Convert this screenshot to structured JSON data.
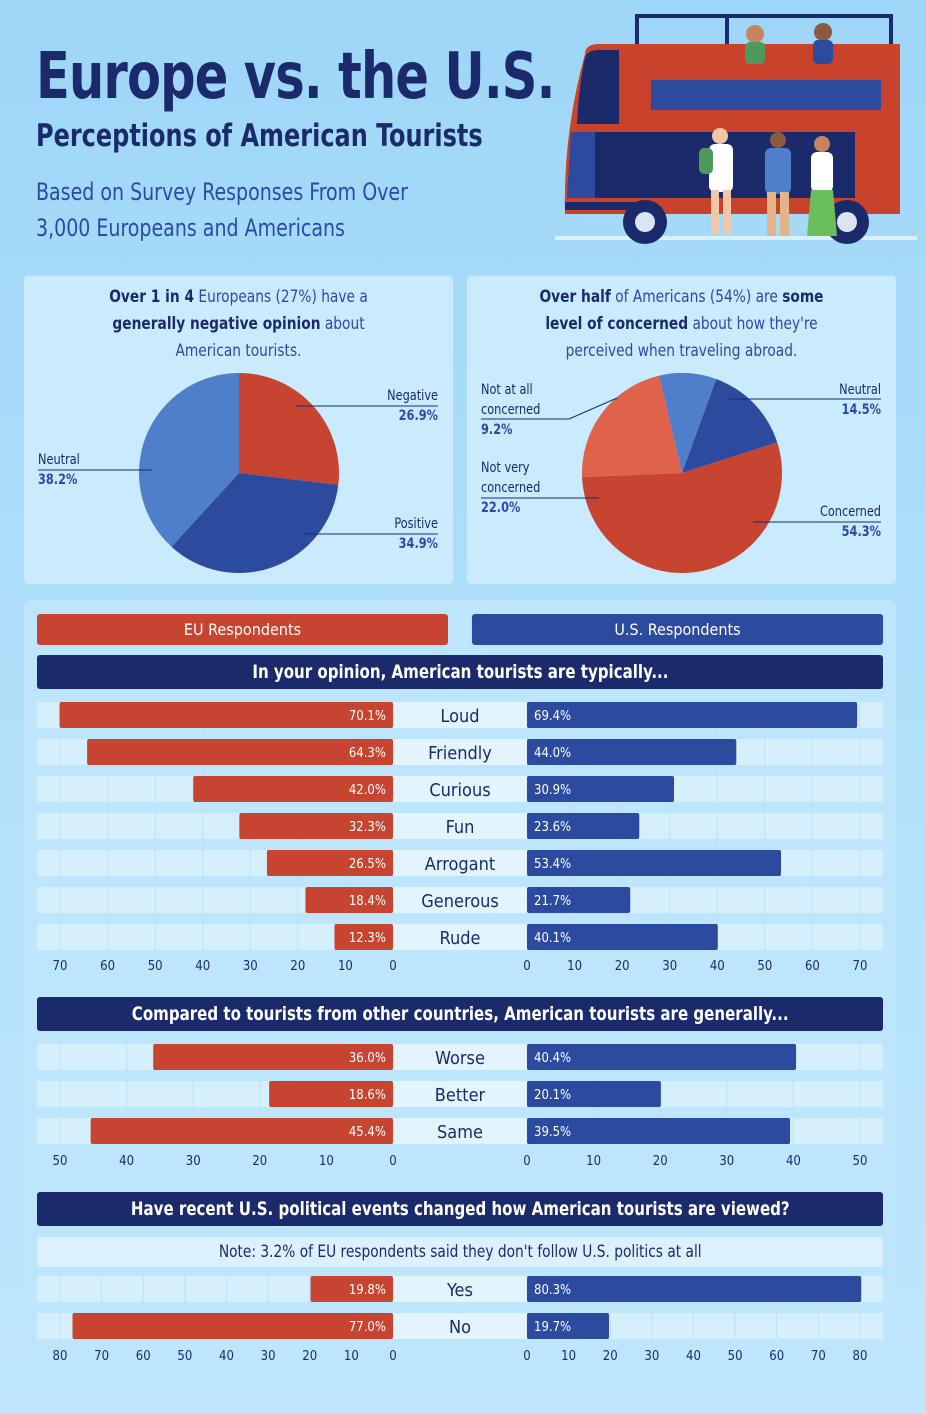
{
  "header": {
    "title": "Europe vs. the U.S.",
    "subtitle": "Perceptions of American Tourists",
    "based_on": "Based on Survey Responses From Over\n3,000 Europeans and Americans"
  },
  "colors": {
    "eu": "#c64430",
    "us": "#2c4a9e",
    "navy": "#1b2a6b",
    "neutral_light": "#4f7ecb",
    "not_very": "#e0624a"
  },
  "pie_left": {
    "title_parts": [
      "Over 1 in 4",
      " Europeans (27%) have a",
      "generally negative opinion",
      " about",
      "American tourists."
    ]
  },
  "pie_right": {
    "title_parts": [
      "Over half",
      " of Americans (54%) are ",
      "some",
      "level of concerned",
      " about how they're",
      "perceived when traveling abroad."
    ]
  },
  "legend": {
    "eu": "EU Respondents",
    "us": "U.S. Respondents"
  },
  "notes": {
    "politics": "Note: 3.2% of EU respondents said they don't follow U.S. politics at all"
  },
  "chart_data": [
    {
      "type": "pie",
      "labels": [
        "Negative",
        "Positive",
        "Neutral"
      ],
      "values": [
        26.9,
        34.9,
        38.2
      ],
      "value_labels": [
        "26.9%",
        "34.9%",
        "38.2%"
      ],
      "colors": [
        "#c64430",
        "#2c4a9e",
        "#4f7ecb"
      ]
    },
    {
      "type": "pie",
      "labels": [
        "Neutral",
        "Concerned",
        "Not very concerned",
        "Not at all concerned"
      ],
      "values": [
        14.5,
        54.3,
        22.0,
        9.2
      ],
      "value_labels": [
        "14.5%",
        "54.3%",
        "22.0%",
        "9.2%"
      ],
      "colors": [
        "#2c4a9e",
        "#c64430",
        "#e0624a",
        "#4f7ecb"
      ]
    },
    {
      "type": "bar",
      "title": "In your opinion, American tourists are typically...",
      "categories": [
        "Loud",
        "Friendly",
        "Curious",
        "Fun",
        "Arrogant",
        "Generous",
        "Rude"
      ],
      "series": [
        {
          "name": "EU Respondents",
          "values": [
            70.1,
            64.3,
            42.0,
            32.3,
            26.5,
            18.4,
            12.3
          ],
          "labels": [
            "70.1%",
            "64.3%",
            "42.0%",
            "32.3%",
            "26.5%",
            "18.4%",
            "12.3%"
          ]
        },
        {
          "name": "U.S. Respondents",
          "values": [
            69.4,
            44.0,
            30.9,
            23.6,
            53.4,
            21.7,
            40.1
          ],
          "labels": [
            "69.4%",
            "44.0%",
            "30.9%",
            "23.6%",
            "53.4%",
            "21.7%",
            "40.1%"
          ]
        }
      ],
      "ticks": [
        "0",
        "10",
        "20",
        "30",
        "40",
        "50",
        "60",
        "70"
      ],
      "xlim": [
        0,
        70
      ]
    },
    {
      "type": "bar",
      "title": "Compared to tourists from other countries, American tourists are generally...",
      "categories": [
        "Worse",
        "Better",
        "Same"
      ],
      "series": [
        {
          "name": "EU Respondents",
          "values": [
            36.0,
            18.6,
            45.4
          ],
          "labels": [
            "36.0%",
            "18.6%",
            "45.4%"
          ]
        },
        {
          "name": "U.S. Respondents",
          "values": [
            40.4,
            20.1,
            39.5
          ],
          "labels": [
            "40.4%",
            "20.1%",
            "39.5%"
          ]
        }
      ],
      "ticks": [
        "0",
        "10",
        "20",
        "30",
        "40",
        "50"
      ],
      "xlim": [
        0,
        50
      ]
    },
    {
      "type": "bar",
      "title": "Have recent U.S. political events changed how American tourists are viewed?",
      "categories": [
        "Yes",
        "No"
      ],
      "series": [
        {
          "name": "EU Respondents",
          "values": [
            19.8,
            77.0
          ],
          "labels": [
            "19.8%",
            "77.0%"
          ]
        },
        {
          "name": "U.S. Respondents",
          "values": [
            80.3,
            19.7
          ],
          "labels": [
            "80.3%",
            "19.7%"
          ]
        }
      ],
      "ticks": [
        "0",
        "10",
        "20",
        "30",
        "40",
        "50",
        "60",
        "70",
        "80"
      ],
      "xlim": [
        0,
        80
      ]
    }
  ]
}
